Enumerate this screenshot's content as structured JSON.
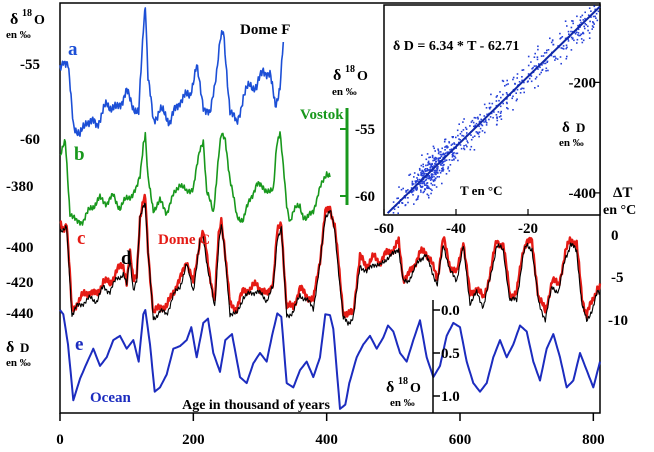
{
  "chart_data": {
    "type": "line",
    "x_axis": {
      "label": "Age in thousand of years",
      "range": [
        0,
        810
      ],
      "ticks": [
        "0",
        "200",
        "400",
        "600",
        "800"
      ],
      "tick_values": [
        0,
        200,
        400,
        600,
        800
      ]
    },
    "left_axis": {
      "unit_symbol": "δ",
      "unit_superscript": "18",
      "unit_letter": "O",
      "unit_per": "en ‰",
      "ticks": [
        "-55",
        "-60",
        "-380",
        "-400",
        "-420",
        "-440"
      ]
    },
    "vostok_axis": {
      "unit_symbol": "δ",
      "unit_superscript": "18",
      "unit_letter": "O",
      "unit_per": "en ‰",
      "ticks": [
        "-55",
        "-60"
      ]
    },
    "dd_axis": {
      "unit_symbol": "δ",
      "unit_letter": "D",
      "unit_per": "en ‰"
    },
    "dt_axis": {
      "label": "ΔT",
      "unit": "en °C",
      "ticks": [
        "0",
        "-5",
        "-10"
      ]
    },
    "ocean_axis": {
      "unit_symbol": "δ",
      "unit_superscript": "18",
      "unit_letter": "O",
      "unit_per": "en ‰",
      "ticks": [
        "0.0",
        "0.5",
        "1.0"
      ]
    },
    "series": [
      {
        "name": "Dome F",
        "letter": "a",
        "color": "#1c4fd6",
        "x": [
          0,
          5,
          12,
          20,
          30,
          40,
          55,
          70,
          85,
          100,
          110,
          118,
          125,
          128,
          132,
          140,
          150,
          165,
          180,
          195,
          205,
          215,
          225,
          235,
          240,
          245,
          255,
          265,
          275,
          285,
          295,
          305,
          315,
          323,
          330,
          335
        ],
        "y": [
          -55.2,
          -54.5,
          -55.0,
          -58.7,
          -59.6,
          -58.5,
          -58.8,
          -57.5,
          -57.8,
          -56.7,
          -57.6,
          -58.2,
          -52.5,
          -50.8,
          -55.7,
          -58.6,
          -57.8,
          -58.6,
          -57.2,
          -56.8,
          -55.1,
          -57.5,
          -58.3,
          -55.2,
          -53.4,
          -52.9,
          -57.8,
          -58.8,
          -57.0,
          -56.2,
          -56.4,
          -55.2,
          -55.6,
          -57.5,
          -56.4,
          -53.6
        ]
      },
      {
        "name": "Vostok",
        "letter": "b",
        "color": "#18981c",
        "x": [
          0,
          8,
          15,
          25,
          35,
          45,
          60,
          70,
          80,
          90,
          100,
          110,
          115,
          120,
          125,
          128,
          132,
          140,
          150,
          160,
          170,
          180,
          190,
          200,
          210,
          215,
          220,
          230,
          238,
          242,
          248,
          255,
          265,
          275,
          285,
          295,
          305,
          315,
          320,
          325,
          330,
          340,
          345,
          350,
          355,
          360,
          365,
          370,
          380,
          390,
          400,
          405
        ],
        "y": [
          -57.0,
          -56.0,
          -61.2,
          -62.0,
          -61.8,
          -61.0,
          -60.2,
          -60.5,
          -60.0,
          -60.9,
          -60.2,
          -59.8,
          -59.5,
          -58.5,
          -56.0,
          -55.4,
          -58.8,
          -61.0,
          -60.4,
          -61.2,
          -60.0,
          -59.0,
          -59.8,
          -59.3,
          -56.6,
          -55.8,
          -59.6,
          -61.3,
          -56.9,
          -55.5,
          -55.8,
          -58.7,
          -61.5,
          -61.8,
          -60.2,
          -59.2,
          -59.3,
          -59.8,
          -59.6,
          -56.0,
          -55.2,
          -60.7,
          -61.8,
          -61.2,
          -60.9,
          -60.7,
          -61.5,
          -61.8,
          -61.0,
          -59.5,
          -58.2,
          -58.5
        ]
      },
      {
        "name": "Dome C",
        "letter": "c",
        "color": "#e51b15",
        "x": [
          0,
          5,
          10,
          18,
          25,
          35,
          45,
          55,
          65,
          75,
          85,
          95,
          100,
          105,
          110,
          115,
          120,
          125,
          128,
          132,
          140,
          150,
          160,
          170,
          180,
          190,
          200,
          210,
          215,
          222,
          232,
          238,
          242,
          246,
          255,
          265,
          275,
          285,
          295,
          310,
          320,
          326,
          332,
          340,
          350,
          360,
          370,
          380,
          390,
          398,
          405,
          412,
          418,
          425,
          432,
          440,
          450,
          460,
          470,
          480,
          490,
          500,
          508,
          515,
          522,
          530,
          540,
          548,
          556,
          566,
          575,
          585,
          595,
          605,
          615,
          625,
          635,
          645,
          655,
          665,
          675,
          685,
          695,
          700,
          708,
          718,
          728,
          738,
          748,
          758,
          766,
          775,
          783,
          790,
          800,
          806,
          810
        ],
        "y": [
          -398,
          -400,
          -397,
          -440,
          -436,
          -432,
          -430,
          -432,
          -425,
          -427,
          -420,
          -418,
          -425,
          -412,
          -426,
          -422,
          -395,
          -388,
          -386,
          -410,
          -441,
          -437,
          -438,
          -430,
          -425,
          -415,
          -427,
          -405,
          -402,
          -417,
          -435,
          -404,
          -396,
          -406,
          -437,
          -438,
          -430,
          -429,
          -427,
          -432,
          -425,
          -402,
          -398,
          -438,
          -437,
          -429,
          -432,
          -435,
          -415,
          -393,
          -390,
          -399,
          -418,
          -440,
          -442,
          -439,
          -414,
          -418,
          -414,
          -416,
          -412,
          -410,
          -407,
          -424,
          -423,
          -418,
          -412,
          -411,
          -416,
          -424,
          -405,
          -418,
          -422,
          -406,
          -432,
          -428,
          -434,
          -422,
          -406,
          -408,
          -432,
          -431,
          -410,
          -406,
          -407,
          -433,
          -440,
          -425,
          -427,
          -412,
          -405,
          -408,
          -433,
          -441,
          -434,
          -428,
          -428
        ]
      },
      {
        "name": "Dome C ΔT",
        "letter": "d",
        "color": "#000000",
        "x": [
          0,
          5,
          10,
          18,
          25,
          35,
          45,
          55,
          65,
          75,
          85,
          95,
          100,
          105,
          110,
          115,
          120,
          125,
          128,
          132,
          140,
          150,
          160,
          170,
          180,
          190,
          200,
          210,
          215,
          222,
          232,
          238,
          242,
          246,
          255,
          265,
          275,
          285,
          295,
          310,
          320,
          326,
          332,
          340,
          350,
          360,
          370,
          380,
          390,
          398,
          405,
          412,
          418,
          425,
          432,
          440,
          450,
          460,
          470,
          480,
          490,
          500,
          508,
          515,
          522,
          530,
          540,
          548,
          556,
          566,
          575,
          585,
          595,
          605,
          615,
          625,
          635,
          645,
          655,
          665,
          675,
          685,
          695,
          700,
          708,
          718,
          728,
          738,
          748,
          758,
          766,
          775,
          783,
          790,
          800,
          806,
          810
        ],
        "y": [
          0.4,
          0.2,
          0.5,
          -9.5,
          -8.6,
          -8.1,
          -7.6,
          -7.9,
          -6.3,
          -6.8,
          -5.3,
          -4.8,
          -6.1,
          -3.0,
          -6.5,
          -5.6,
          1.6,
          3.3,
          3.6,
          -2.2,
          -10.0,
          -9.1,
          -9.4,
          -7.3,
          -6.2,
          -3.7,
          -6.6,
          -1.1,
          -0.4,
          -4.3,
          -8.7,
          -1.0,
          0.9,
          -1.5,
          -9.3,
          -9.5,
          -7.4,
          -7.1,
          -6.7,
          -7.8,
          -6.3,
          -0.5,
          0.6,
          -9.6,
          -9.2,
          -7.2,
          -7.8,
          -8.7,
          -3.7,
          2.0,
          2.6,
          0.3,
          -4.5,
          -10.0,
          -10.4,
          -9.9,
          -3.7,
          -4.6,
          -3.5,
          -3.9,
          -2.9,
          -2.5,
          -1.7,
          -5.8,
          -5.6,
          -4.5,
          -3.0,
          -2.6,
          -3.9,
          -6.1,
          -1.2,
          -4.5,
          -5.4,
          -1.6,
          -8.1,
          -7.0,
          -8.5,
          -5.4,
          -1.4,
          -2.1,
          -7.9,
          -7.7,
          -2.5,
          -1.5,
          -1.8,
          -8.2,
          -10.0,
          -6.3,
          -6.8,
          -2.9,
          -1.3,
          -2.1,
          -8.3,
          -10.3,
          -8.5,
          -7.0,
          -7.0
        ]
      },
      {
        "name": "Ocean",
        "letter": "e",
        "color": "#1c2cbf",
        "x": [
          0,
          5,
          12,
          20,
          30,
          40,
          50,
          60,
          70,
          80,
          90,
          100,
          110,
          118,
          125,
          128,
          135,
          142,
          150,
          160,
          170,
          180,
          190,
          197,
          205,
          215,
          222,
          230,
          240,
          248,
          258,
          270,
          280,
          290,
          300,
          310,
          318,
          326,
          332,
          340,
          350,
          360,
          370,
          380,
          390,
          398,
          405,
          410,
          420,
          428,
          434,
          445,
          455,
          465,
          475,
          485,
          492,
          500,
          510,
          520,
          530,
          540,
          550,
          560,
          570,
          580,
          590,
          600,
          610,
          620,
          630,
          640,
          650,
          660,
          670,
          680,
          690,
          700,
          710,
          720,
          730,
          740,
          750,
          760,
          770,
          780,
          790,
          800,
          810
        ],
        "y": [
          0.0,
          0.05,
          0.4,
          1.05,
          0.8,
          0.62,
          0.45,
          0.65,
          0.55,
          0.35,
          0.3,
          0.45,
          0.35,
          0.6,
          0.05,
          0.0,
          0.4,
          0.95,
          0.9,
          0.75,
          0.45,
          0.42,
          0.35,
          0.2,
          0.55,
          0.15,
          0.1,
          0.5,
          0.72,
          0.35,
          0.28,
          0.78,
          0.85,
          0.62,
          0.5,
          0.6,
          0.3,
          0.04,
          0.08,
          0.85,
          0.9,
          0.7,
          0.6,
          0.78,
          0.55,
          0.05,
          0.06,
          0.22,
          1.15,
          1.1,
          0.85,
          0.55,
          0.4,
          0.3,
          0.45,
          0.32,
          0.18,
          0.25,
          0.5,
          0.6,
          0.35,
          0.12,
          0.55,
          0.78,
          0.65,
          0.3,
          0.15,
          0.2,
          0.6,
          0.85,
          0.95,
          0.85,
          0.55,
          0.35,
          0.55,
          0.4,
          0.18,
          0.25,
          0.6,
          0.82,
          0.45,
          0.28,
          0.55,
          0.9,
          0.82,
          0.5,
          0.7,
          0.9,
          0.6
        ]
      }
    ],
    "labels": {
      "dome_f": "Dome F",
      "vostok": "Vostok",
      "dome_c": "Dome C",
      "ocean": "Ocean",
      "a": "a",
      "b": "b",
      "c": "c",
      "d": "d",
      "e": "e"
    },
    "inset": {
      "type": "scatter",
      "equation": "δ D = 6.34 * T - 62.71",
      "xlabel": "T en °C",
      "x_ticks": [
        "-60",
        "-40",
        "-20"
      ],
      "x_tick_values": [
        -60,
        -40,
        -20
      ],
      "xlim": [
        -60,
        0
      ],
      "y_ticks": [
        "-200",
        "-400"
      ],
      "y_tick_values": [
        -200,
        -400
      ],
      "ylim": [
        -440,
        -60
      ],
      "slope": 6.34,
      "intercept": -62.71,
      "point_color": "#2540d8",
      "line_color": "#1028a8"
    }
  }
}
